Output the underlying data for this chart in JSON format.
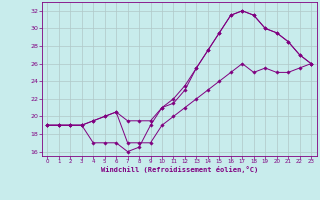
{
  "xlabel": "Windchill (Refroidissement éolien,°C)",
  "xlim": [
    -0.5,
    23.5
  ],
  "ylim": [
    15.5,
    33
  ],
  "xticks": [
    0,
    1,
    2,
    3,
    4,
    5,
    6,
    7,
    8,
    9,
    10,
    11,
    12,
    13,
    14,
    15,
    16,
    17,
    18,
    19,
    20,
    21,
    22,
    23
  ],
  "yticks": [
    16,
    18,
    20,
    22,
    24,
    26,
    28,
    30,
    32
  ],
  "bg_color": "#c8ecec",
  "line_color": "#800080",
  "grid_color": "#b0c8c8",
  "series1_x": [
    0,
    1,
    2,
    3,
    4,
    5,
    6,
    7,
    8,
    9,
    10,
    11,
    12,
    13,
    14,
    15,
    16,
    17,
    18,
    19,
    20,
    21,
    22,
    23
  ],
  "series1_y": [
    19.0,
    19.0,
    19.0,
    19.0,
    19.5,
    20.0,
    20.5,
    19.5,
    19.5,
    19.5,
    21.0,
    22.0,
    23.5,
    25.5,
    27.5,
    29.5,
    31.5,
    32.0,
    31.5,
    30.0,
    29.5,
    28.5,
    27.0,
    26.0
  ],
  "series2_x": [
    0,
    1,
    2,
    3,
    4,
    5,
    6,
    7,
    8,
    9,
    10,
    11,
    12,
    13,
    14,
    15,
    16,
    17,
    18,
    19,
    20,
    21,
    22,
    23
  ],
  "series2_y": [
    19.0,
    19.0,
    19.0,
    19.0,
    17.0,
    17.0,
    17.0,
    16.0,
    16.5,
    19.0,
    21.0,
    21.5,
    23.0,
    25.5,
    27.5,
    29.5,
    31.5,
    32.0,
    31.5,
    30.0,
    29.5,
    28.5,
    27.0,
    26.0
  ],
  "series3_x": [
    0,
    1,
    2,
    3,
    4,
    5,
    6,
    7,
    8,
    9,
    10,
    11,
    12,
    13,
    14,
    15,
    16,
    17,
    18,
    19,
    20,
    21,
    22,
    23
  ],
  "series3_y": [
    19.0,
    19.0,
    19.0,
    19.0,
    19.5,
    20.0,
    20.5,
    17.0,
    17.0,
    17.0,
    19.0,
    20.0,
    21.0,
    22.0,
    23.0,
    24.0,
    25.0,
    26.0,
    25.0,
    25.5,
    25.0,
    25.0,
    25.5,
    26.0
  ]
}
